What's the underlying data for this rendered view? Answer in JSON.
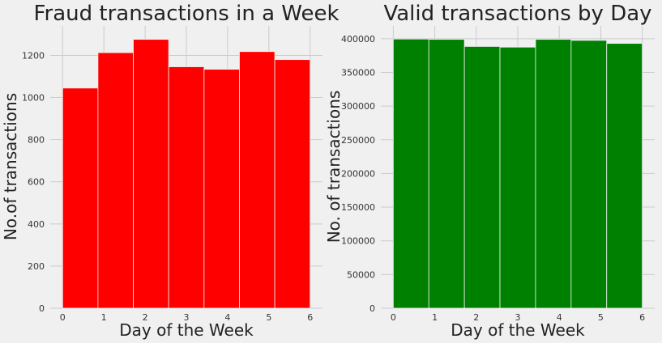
{
  "chart_data": [
    {
      "type": "bar",
      "title": "Fraud transactions in a Week",
      "xlabel": "Day of the Week",
      "ylabel": "No.of transactions",
      "bin_edges": [
        0,
        0.857,
        1.714,
        2.571,
        3.429,
        4.286,
        5.143,
        6
      ],
      "values": [
        1045,
        1213,
        1276,
        1146,
        1134,
        1218,
        1180
      ],
      "xlim": [
        -0.3,
        6.3
      ],
      "ylim": [
        0,
        1340
      ],
      "xticks": [
        0,
        1,
        2,
        3,
        4,
        5,
        6
      ],
      "yticks": [
        0,
        200,
        400,
        600,
        800,
        1000,
        1200
      ],
      "ytick_labels": [
        "0",
        "200",
        "400",
        "600",
        "800",
        "1000",
        "1200"
      ],
      "bar_color": "#ff0000",
      "grid": true
    },
    {
      "type": "bar",
      "title": "Valid transactions by Day",
      "xlabel": "Day of the Week",
      "ylabel": "No. of transactions",
      "bin_edges": [
        0,
        0.857,
        1.714,
        2.571,
        3.429,
        4.286,
        5.143,
        6
      ],
      "values": [
        399500,
        399000,
        388500,
        387500,
        399000,
        397500,
        393000
      ],
      "xlim": [
        -0.3,
        6.3
      ],
      "ylim": [
        0,
        419000
      ],
      "xticks": [
        0,
        1,
        2,
        3,
        4,
        5,
        6
      ],
      "yticks": [
        0,
        50000,
        100000,
        150000,
        200000,
        250000,
        300000,
        350000,
        400000
      ],
      "ytick_labels": [
        "0",
        "50000",
        "100000",
        "150000",
        "200000",
        "250000",
        "300000",
        "350000",
        "400000"
      ],
      "bar_color": "#008000",
      "grid": true
    }
  ]
}
